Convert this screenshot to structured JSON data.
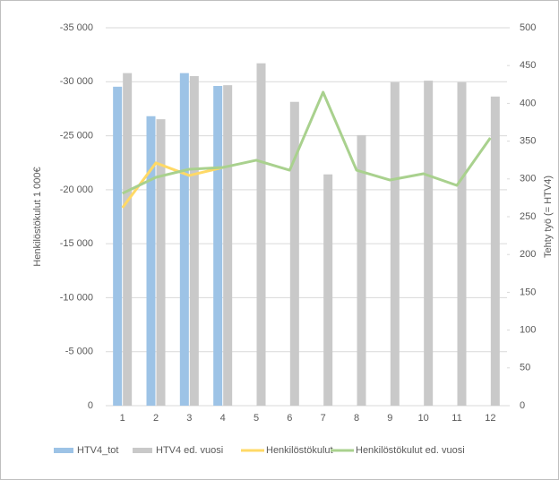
{
  "chart_data": {
    "type": "bar-line",
    "ylabel": "Henkilöstökulut 1 000€",
    "y2label": "Tehty työ (= HTV4)",
    "categories": [
      "1",
      "2",
      "3",
      "4",
      "5",
      "6",
      "7",
      "8",
      "9",
      "10",
      "11",
      "12"
    ],
    "ylim": [
      0,
      -35000
    ],
    "yticks": [
      {
        "value": -35000,
        "label": "-35 000"
      },
      {
        "value": -30000,
        "label": "-30 000"
      },
      {
        "value": -25000,
        "label": "-25 000"
      },
      {
        "value": -20000,
        "label": "-20 000"
      },
      {
        "value": -15000,
        "label": "-15 000"
      },
      {
        "value": -10000,
        "label": "-10 000"
      },
      {
        "value": -5000,
        "label": "-5 000"
      },
      0
    ],
    "y2lim": [
      0,
      500
    ],
    "y2ticks": [
      0,
      50,
      100,
      150,
      200,
      250,
      300,
      350,
      400,
      450,
      500
    ],
    "grid": true,
    "legend": "bottom",
    "series": [
      {
        "name": "HTV4_tot",
        "kind": "bar",
        "axis": "y2",
        "color": "#9dc3e6",
        "values": [
          422,
          383,
          440,
          423,
          null,
          null,
          null,
          null,
          null,
          null,
          null,
          null
        ]
      },
      {
        "name": "HTV4 ed. vuosi",
        "kind": "bar",
        "axis": "y2",
        "color": "#c9c9c9",
        "values": [
          440,
          379,
          436,
          424,
          453,
          402,
          306,
          358,
          428,
          430,
          428,
          409
        ]
      },
      {
        "name": "Henkilöstökulut",
        "kind": "line",
        "axis": "y",
        "color": "#ffd966",
        "values": [
          -18330,
          -22480,
          -21320,
          -22060,
          null,
          null,
          null,
          null,
          null,
          null,
          null,
          null
        ]
      },
      {
        "name": "Henkilöstökulut ed. vuosi",
        "kind": "line",
        "axis": "y",
        "color": "#a9d18e",
        "values": [
          -19660,
          -21150,
          -21900,
          -22060,
          -22730,
          -21810,
          -29030,
          -21810,
          -20900,
          -21480,
          -20400,
          -24800
        ]
      }
    ]
  }
}
